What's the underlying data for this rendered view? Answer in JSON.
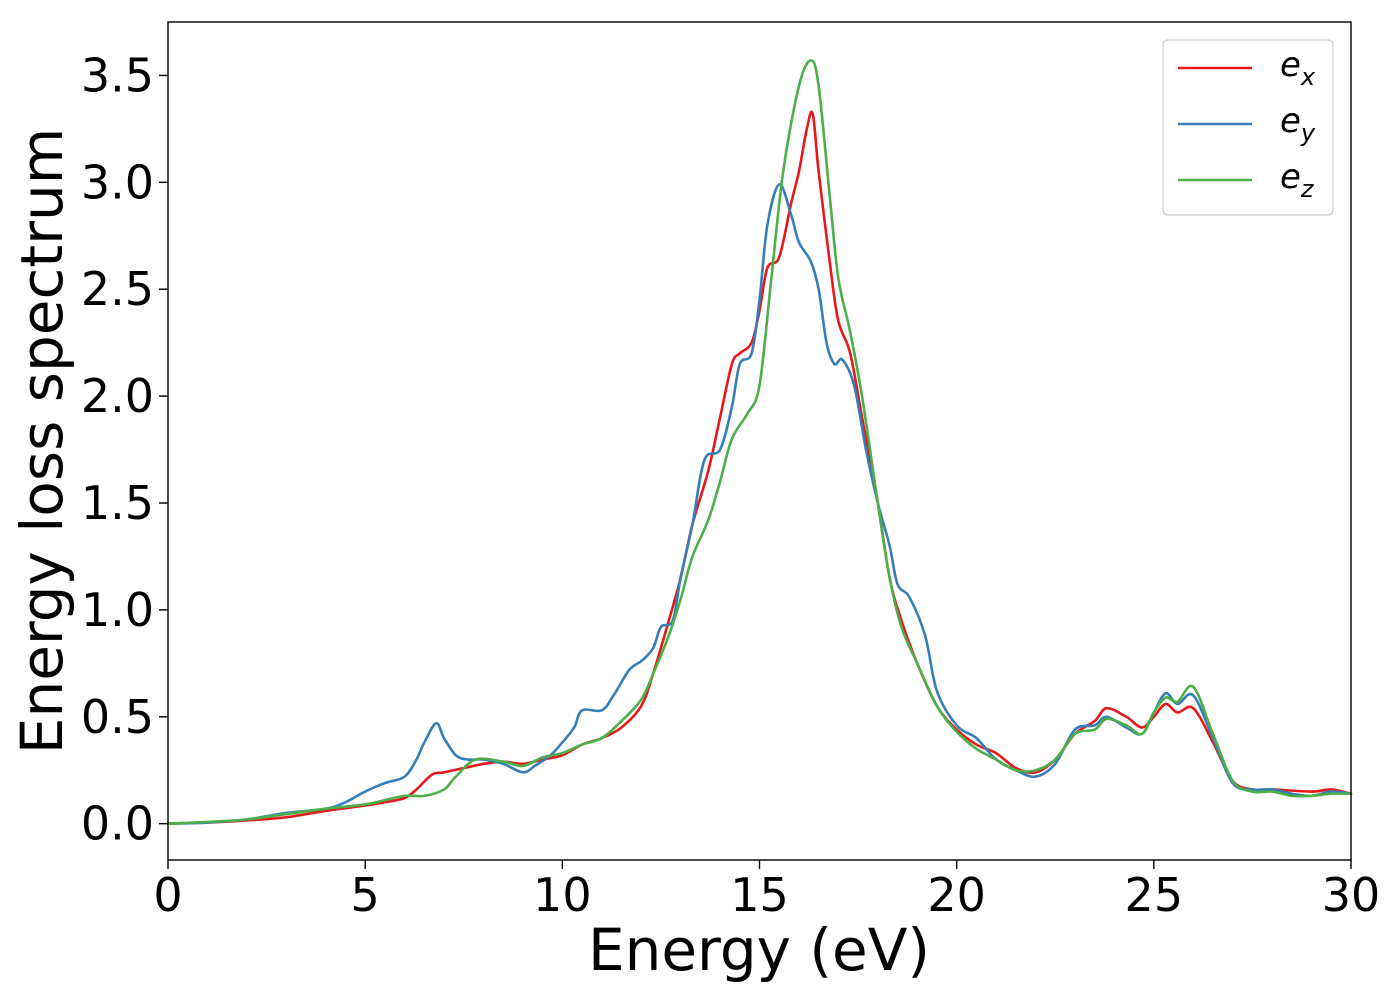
{
  "chart_data": {
    "type": "line",
    "xlabel": "Energy (eV)",
    "ylabel": "Energy loss spectrum",
    "xlim": [
      0,
      30
    ],
    "ylim": [
      -0.17,
      3.75
    ],
    "xticks": [
      0,
      5,
      10,
      15,
      20,
      25,
      30
    ],
    "xtick_labels": [
      "0",
      "5",
      "10",
      "15",
      "20",
      "25",
      "30"
    ],
    "yticks": [
      0.0,
      0.5,
      1.0,
      1.5,
      2.0,
      2.5,
      3.0,
      3.5
    ],
    "ytick_labels": [
      "0.0",
      "0.5",
      "1.0",
      "1.5",
      "2.0",
      "2.5",
      "3.0",
      "3.5"
    ],
    "grid": false,
    "legend_position": "top-right",
    "series": [
      {
        "name": "e_x",
        "legend_base": "e",
        "legend_sub": "x",
        "color": "#e41a1c",
        "points": [
          [
            0,
            0.0
          ],
          [
            1,
            0.005
          ],
          [
            2,
            0.015
          ],
          [
            3,
            0.03
          ],
          [
            4,
            0.06
          ],
          [
            5,
            0.085
          ],
          [
            5.5,
            0.1
          ],
          [
            6,
            0.12
          ],
          [
            6.3,
            0.16
          ],
          [
            6.7,
            0.23
          ],
          [
            7,
            0.24
          ],
          [
            7.5,
            0.26
          ],
          [
            8,
            0.28
          ],
          [
            8.5,
            0.29
          ],
          [
            9,
            0.28
          ],
          [
            9.5,
            0.3
          ],
          [
            10,
            0.32
          ],
          [
            10.5,
            0.37
          ],
          [
            11,
            0.4
          ],
          [
            11.5,
            0.45
          ],
          [
            12,
            0.55
          ],
          [
            12.3,
            0.7
          ],
          [
            12.7,
            0.95
          ],
          [
            13,
            1.15
          ],
          [
            13.3,
            1.4
          ],
          [
            13.7,
            1.65
          ],
          [
            14,
            1.9
          ],
          [
            14.3,
            2.15
          ],
          [
            14.5,
            2.2
          ],
          [
            14.8,
            2.25
          ],
          [
            15,
            2.4
          ],
          [
            15.2,
            2.6
          ],
          [
            15.5,
            2.65
          ],
          [
            15.8,
            2.9
          ],
          [
            16,
            3.05
          ],
          [
            16.2,
            3.25
          ],
          [
            16.35,
            3.32
          ],
          [
            16.5,
            3.05
          ],
          [
            16.8,
            2.6
          ],
          [
            17,
            2.35
          ],
          [
            17.3,
            2.2
          ],
          [
            17.6,
            1.9
          ],
          [
            18,
            1.5
          ],
          [
            18.3,
            1.15
          ],
          [
            18.6,
            0.95
          ],
          [
            19,
            0.75
          ],
          [
            19.5,
            0.55
          ],
          [
            20,
            0.44
          ],
          [
            20.5,
            0.37
          ],
          [
            21,
            0.33
          ],
          [
            21.5,
            0.26
          ],
          [
            22,
            0.24
          ],
          [
            22.5,
            0.3
          ],
          [
            23,
            0.42
          ],
          [
            23.5,
            0.48
          ],
          [
            23.8,
            0.54
          ],
          [
            24.3,
            0.5
          ],
          [
            24.7,
            0.45
          ],
          [
            25,
            0.5
          ],
          [
            25.3,
            0.56
          ],
          [
            25.6,
            0.52
          ],
          [
            26,
            0.54
          ],
          [
            26.5,
            0.38
          ],
          [
            27,
            0.2
          ],
          [
            27.5,
            0.16
          ],
          [
            28,
            0.16
          ],
          [
            29,
            0.15
          ],
          [
            29.5,
            0.16
          ],
          [
            30,
            0.14
          ]
        ]
      },
      {
        "name": "e_y",
        "legend_base": "e",
        "legend_sub": "y",
        "color": "#377eb8",
        "points": [
          [
            0,
            0.0
          ],
          [
            1,
            0.005
          ],
          [
            2,
            0.02
          ],
          [
            3,
            0.05
          ],
          [
            4,
            0.07
          ],
          [
            4.5,
            0.1
          ],
          [
            5,
            0.15
          ],
          [
            5.5,
            0.19
          ],
          [
            6,
            0.22
          ],
          [
            6.3,
            0.3
          ],
          [
            6.5,
            0.38
          ],
          [
            6.8,
            0.47
          ],
          [
            7,
            0.4
          ],
          [
            7.3,
            0.32
          ],
          [
            7.6,
            0.3
          ],
          [
            8,
            0.3
          ],
          [
            8.5,
            0.28
          ],
          [
            9,
            0.24
          ],
          [
            9.3,
            0.27
          ],
          [
            9.7,
            0.32
          ],
          [
            10,
            0.38
          ],
          [
            10.3,
            0.45
          ],
          [
            10.5,
            0.53
          ],
          [
            11,
            0.53
          ],
          [
            11.3,
            0.6
          ],
          [
            11.7,
            0.72
          ],
          [
            12,
            0.76
          ],
          [
            12.3,
            0.82
          ],
          [
            12.5,
            0.92
          ],
          [
            12.8,
            0.95
          ],
          [
            13,
            1.15
          ],
          [
            13.3,
            1.4
          ],
          [
            13.6,
            1.7
          ],
          [
            14,
            1.75
          ],
          [
            14.3,
            1.95
          ],
          [
            14.5,
            2.15
          ],
          [
            14.8,
            2.2
          ],
          [
            15,
            2.45
          ],
          [
            15.2,
            2.8
          ],
          [
            15.5,
            2.99
          ],
          [
            15.8,
            2.85
          ],
          [
            16,
            2.72
          ],
          [
            16.3,
            2.63
          ],
          [
            16.5,
            2.5
          ],
          [
            16.7,
            2.25
          ],
          [
            16.9,
            2.15
          ],
          [
            17.1,
            2.17
          ],
          [
            17.4,
            2.05
          ],
          [
            17.7,
            1.75
          ],
          [
            18,
            1.5
          ],
          [
            18.3,
            1.3
          ],
          [
            18.5,
            1.12
          ],
          [
            18.8,
            1.06
          ],
          [
            19.2,
            0.88
          ],
          [
            19.5,
            0.62
          ],
          [
            20,
            0.46
          ],
          [
            20.5,
            0.4
          ],
          [
            21,
            0.3
          ],
          [
            21.5,
            0.25
          ],
          [
            22,
            0.22
          ],
          [
            22.5,
            0.28
          ],
          [
            23,
            0.44
          ],
          [
            23.5,
            0.46
          ],
          [
            23.8,
            0.5
          ],
          [
            24.3,
            0.45
          ],
          [
            24.7,
            0.42
          ],
          [
            25,
            0.52
          ],
          [
            25.3,
            0.61
          ],
          [
            25.6,
            0.56
          ],
          [
            26,
            0.6
          ],
          [
            26.5,
            0.4
          ],
          [
            27,
            0.19
          ],
          [
            27.5,
            0.16
          ],
          [
            28,
            0.16
          ],
          [
            28.5,
            0.14
          ],
          [
            29,
            0.13
          ],
          [
            29.5,
            0.15
          ],
          [
            30,
            0.14
          ]
        ]
      },
      {
        "name": "e_z",
        "legend_base": "e",
        "legend_sub": "z",
        "color": "#4daf4a",
        "points": [
          [
            0,
            0.0
          ],
          [
            1,
            0.008
          ],
          [
            2,
            0.02
          ],
          [
            3,
            0.045
          ],
          [
            4,
            0.07
          ],
          [
            5,
            0.09
          ],
          [
            5.5,
            0.11
          ],
          [
            6,
            0.13
          ],
          [
            6.5,
            0.13
          ],
          [
            7,
            0.16
          ],
          [
            7.3,
            0.22
          ],
          [
            7.8,
            0.3
          ],
          [
            8.5,
            0.29
          ],
          [
            9,
            0.27
          ],
          [
            9.5,
            0.31
          ],
          [
            10,
            0.33
          ],
          [
            10.5,
            0.37
          ],
          [
            11,
            0.4
          ],
          [
            11.5,
            0.48
          ],
          [
            12,
            0.58
          ],
          [
            12.3,
            0.7
          ],
          [
            12.7,
            0.88
          ],
          [
            13,
            1.05
          ],
          [
            13.3,
            1.25
          ],
          [
            13.7,
            1.42
          ],
          [
            14,
            1.6
          ],
          [
            14.3,
            1.8
          ],
          [
            14.7,
            1.92
          ],
          [
            15,
            2.05
          ],
          [
            15.3,
            2.55
          ],
          [
            15.6,
            3.05
          ],
          [
            16,
            3.45
          ],
          [
            16.3,
            3.57
          ],
          [
            16.5,
            3.45
          ],
          [
            16.8,
            2.9
          ],
          [
            17,
            2.55
          ],
          [
            17.3,
            2.3
          ],
          [
            17.6,
            2.0
          ],
          [
            18,
            1.5
          ],
          [
            18.3,
            1.15
          ],
          [
            18.6,
            0.92
          ],
          [
            19,
            0.75
          ],
          [
            19.5,
            0.55
          ],
          [
            20,
            0.43
          ],
          [
            20.5,
            0.35
          ],
          [
            21,
            0.3
          ],
          [
            21.5,
            0.25
          ],
          [
            22,
            0.25
          ],
          [
            22.5,
            0.3
          ],
          [
            23,
            0.42
          ],
          [
            23.5,
            0.44
          ],
          [
            23.8,
            0.49
          ],
          [
            24.3,
            0.46
          ],
          [
            24.7,
            0.42
          ],
          [
            25,
            0.52
          ],
          [
            25.3,
            0.59
          ],
          [
            25.6,
            0.57
          ],
          [
            26,
            0.64
          ],
          [
            26.5,
            0.42
          ],
          [
            27,
            0.2
          ],
          [
            27.5,
            0.15
          ],
          [
            28,
            0.15
          ],
          [
            28.5,
            0.13
          ],
          [
            29,
            0.13
          ],
          [
            29.5,
            0.14
          ],
          [
            30,
            0.14
          ]
        ]
      }
    ]
  }
}
